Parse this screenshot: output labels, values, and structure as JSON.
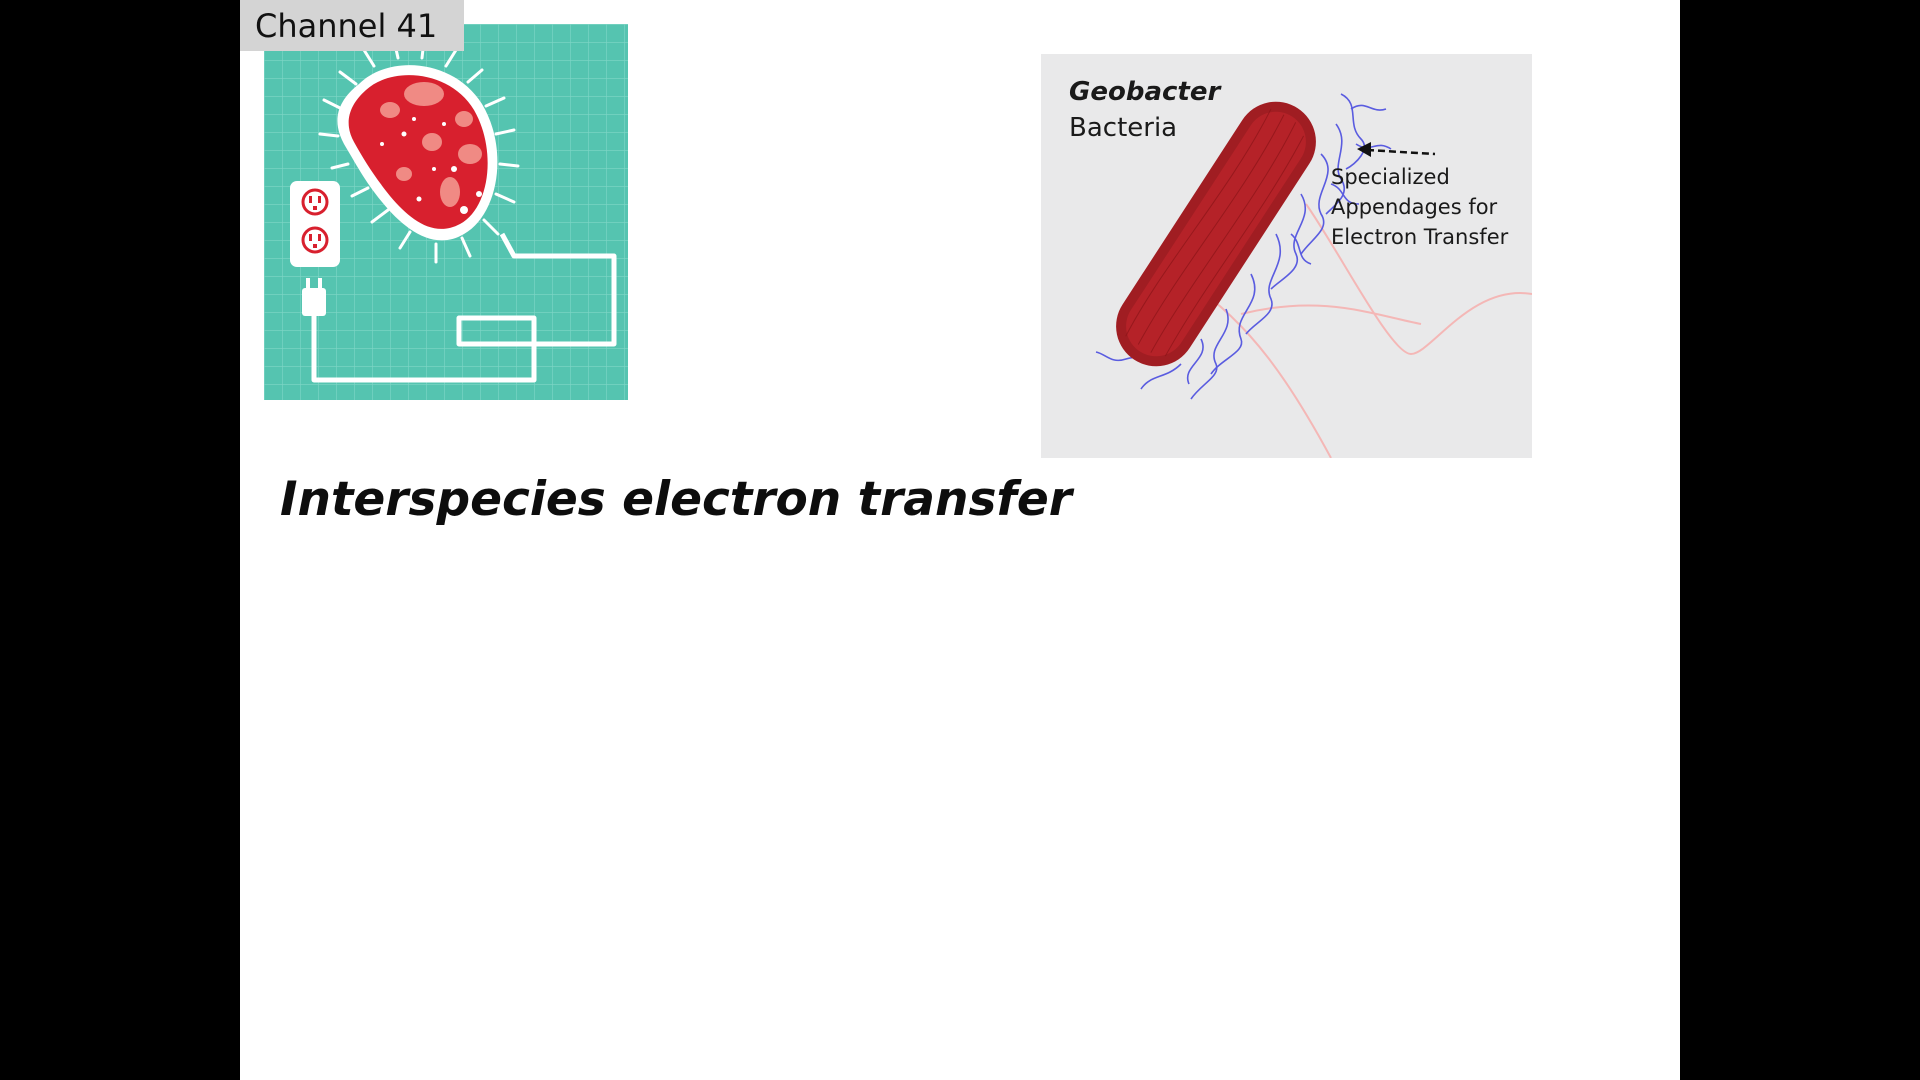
{
  "channel_badge": "Channel 41",
  "slide_title": "Interspecies electron transfer",
  "geobacter_image": {
    "species": "Geobacter",
    "species_suffix": "Bacteria",
    "annotation_lines": [
      "Specialized",
      "Appendages for",
      "Electron Transfer"
    ]
  },
  "colors": {
    "clipart_bg": "#55c4b0",
    "cell_red": "#d8202e",
    "bacteria_red": "#a01d22",
    "appendage_blue": "#5a5ce0"
  }
}
